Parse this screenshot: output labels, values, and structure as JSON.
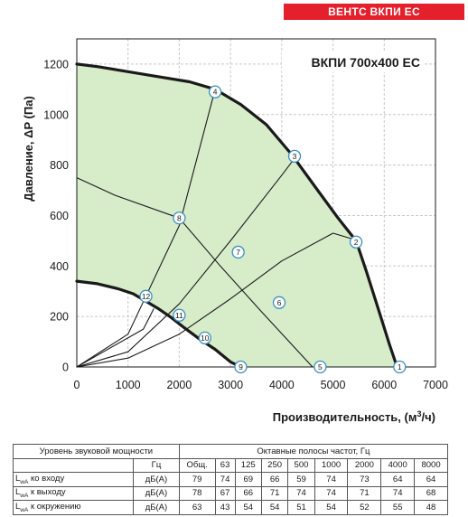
{
  "brand": "ВЕНТС ВКПИ ЕС",
  "chart_data": {
    "type": "line",
    "title": "ВКПИ 700x400 ЕС",
    "xlabel": "Производительность, (м³/ч)",
    "xlabel_main": "Производительность, (м",
    "xlabel_sup": "3",
    "xlabel_tail": "/ч)",
    "ylabel": "Давление, ΔP (Па)",
    "xlim": [
      0,
      7000
    ],
    "ylim": [
      0,
      1300
    ],
    "x_ticks": [
      0,
      1000,
      2000,
      3000,
      4000,
      5000,
      6000,
      7000
    ],
    "y_ticks": [
      0,
      200,
      400,
      600,
      800,
      1000,
      1200
    ],
    "grid": true,
    "series": [
      {
        "role": "max",
        "x": [
          0,
          400,
          1000,
          1600,
          2200,
          2700,
          3200,
          3700,
          4200,
          4700,
          5100,
          5450,
          5650,
          5900,
          6100,
          6250
        ],
        "y": [
          1200,
          1190,
          1170,
          1150,
          1130,
          1100,
          1040,
          960,
          840,
          700,
          590,
          500,
          380,
          220,
          90,
          0
        ]
      },
      {
        "role": "min",
        "x": [
          0,
          400,
          800,
          1100,
          1350,
          1600,
          1850,
          2100,
          2400,
          2700,
          3000,
          3200
        ],
        "y": [
          340,
          330,
          310,
          290,
          260,
          230,
          195,
          155,
          110,
          70,
          20,
          0
        ]
      },
      {
        "role": "network",
        "x": [
          0,
          1000,
          2000,
          2700
        ],
        "y": [
          0,
          130,
          560,
          1100
        ]
      },
      {
        "role": "network",
        "x": [
          0,
          1000,
          2000,
          3000,
          4000,
          4300
        ],
        "y": [
          0,
          60,
          250,
          500,
          760,
          840
        ]
      },
      {
        "role": "network",
        "x": [
          0,
          1000,
          2000,
          3000,
          4000,
          5000,
          5500
        ],
        "y": [
          0,
          35,
          130,
          270,
          420,
          530,
          500
        ]
      },
      {
        "role": "network",
        "x": [
          0,
          1300,
          1500
        ],
        "y": [
          0,
          150,
          230
        ]
      },
      {
        "role": "network",
        "x": [
          0,
          750,
          2000,
          2800,
          3600,
          4600
        ],
        "y": [
          750,
          680,
          590,
          400,
          220,
          0
        ]
      }
    ],
    "points": [
      {
        "label": "1",
        "x": 6300,
        "y": 0
      },
      {
        "label": "2",
        "x": 5450,
        "y": 495
      },
      {
        "label": "3",
        "x": 4250,
        "y": 835
      },
      {
        "label": "4",
        "x": 2700,
        "y": 1090
      },
      {
        "label": "5",
        "x": 4750,
        "y": 0
      },
      {
        "label": "6",
        "x": 3950,
        "y": 255
      },
      {
        "label": "7",
        "x": 3150,
        "y": 455
      },
      {
        "label": "8",
        "x": 2000,
        "y": 590
      },
      {
        "label": "9",
        "x": 3200,
        "y": 0
      },
      {
        "label": "10",
        "x": 2500,
        "y": 115
      },
      {
        "label": "11",
        "x": 2000,
        "y": 205
      },
      {
        "label": "12",
        "x": 1350,
        "y": 280
      }
    ],
    "fill_color": "#d7ecc9",
    "curve_color": "#1a1a1a",
    "marker_color": "#3a8fc4"
  },
  "sound_table": {
    "title": "Уровень звуковой мощности",
    "group_header": "Октавные полосы частот, Гц",
    "unit_header": "Гц",
    "columns": [
      "Общ.",
      "63",
      "125",
      "250",
      "500",
      "1000",
      "2000",
      "4000",
      "8000"
    ],
    "rows": [
      {
        "prefix": "L",
        "sub": "wA",
        "suffix": " ко входу",
        "unit": "дБ(А)",
        "values": [
          "79",
          "74",
          "69",
          "66",
          "59",
          "74",
          "73",
          "64",
          "64"
        ]
      },
      {
        "prefix": "L",
        "sub": "wA",
        "suffix": " к выходу",
        "unit": "дБ(А)",
        "values": [
          "78",
          "67",
          "66",
          "71",
          "74",
          "74",
          "71",
          "74",
          "68"
        ]
      },
      {
        "prefix": "L",
        "sub": "wA",
        "suffix": " к окружению",
        "unit": "дБ(А)",
        "values": [
          "63",
          "43",
          "54",
          "54",
          "51",
          "54",
          "52",
          "55",
          "48"
        ]
      }
    ]
  }
}
